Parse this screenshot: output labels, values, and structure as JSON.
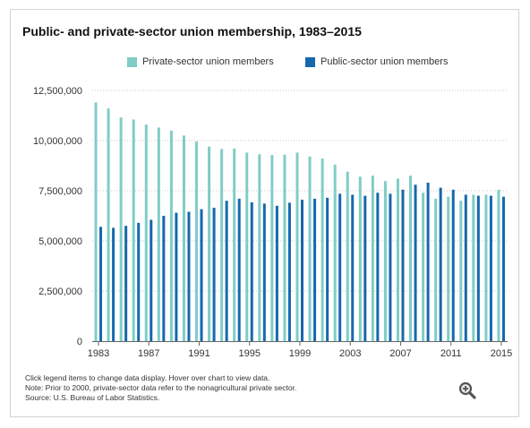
{
  "chart_data": {
    "type": "bar",
    "title": "Public- and private-sector union membership, 1983–2015",
    "xlabel": "",
    "ylabel": "",
    "ylim": [
      0,
      12500000
    ],
    "yticks": [
      0,
      2500000,
      5000000,
      7500000,
      10000000,
      12500000
    ],
    "ytick_labels": [
      "0",
      "2,500,000",
      "5,000,000",
      "7,500,000",
      "10,000,000",
      "12,500,000"
    ],
    "categories": [
      "1983",
      "1984",
      "1985",
      "1986",
      "1987",
      "1988",
      "1989",
      "1990",
      "1991",
      "1992",
      "1993",
      "1994",
      "1995",
      "1996",
      "1997",
      "1998",
      "1999",
      "2000",
      "2001",
      "2002",
      "2003",
      "2004",
      "2005",
      "2006",
      "2007",
      "2008",
      "2009",
      "2010",
      "2011",
      "2012",
      "2013",
      "2014",
      "2015"
    ],
    "xtick_labels": [
      "1983",
      "1987",
      "1991",
      "1995",
      "1999",
      "2003",
      "2007",
      "2011",
      "2015"
    ],
    "grid": true,
    "legend_position": "top",
    "series": [
      {
        "name": "Private-sector union members",
        "color": "#7fcdc6",
        "values": [
          11900000,
          11600000,
          11150000,
          11050000,
          10800000,
          10650000,
          10500000,
          10250000,
          9950000,
          9700000,
          9580000,
          9600000,
          9400000,
          9320000,
          9280000,
          9300000,
          9400000,
          9200000,
          9100000,
          8800000,
          8450000,
          8200000,
          8250000,
          7980000,
          8100000,
          8250000,
          7400000,
          7100000,
          7200000,
          7000000,
          7300000,
          7300000,
          7550000
        ]
      },
      {
        "name": "Public-sector union members",
        "color": "#1668ad",
        "values": [
          5700000,
          5650000,
          5750000,
          5900000,
          6050000,
          6250000,
          6400000,
          6450000,
          6580000,
          6650000,
          7000000,
          7100000,
          6920000,
          6860000,
          6750000,
          6900000,
          7050000,
          7100000,
          7150000,
          7350000,
          7300000,
          7250000,
          7400000,
          7350000,
          7550000,
          7800000,
          7900000,
          7650000,
          7550000,
          7300000,
          7250000,
          7250000,
          7200000
        ]
      }
    ]
  },
  "notes": {
    "line1": "Click legend items to change data display. Hover over chart to view data.",
    "line2": "Note: Prior to 2000, private-sector data refer to the nonagricultural private sector.",
    "line3": "Source: U.S. Bureau of Labor Statistics."
  },
  "icons": {
    "zoom": "zoom-in-magnifier-icon"
  }
}
